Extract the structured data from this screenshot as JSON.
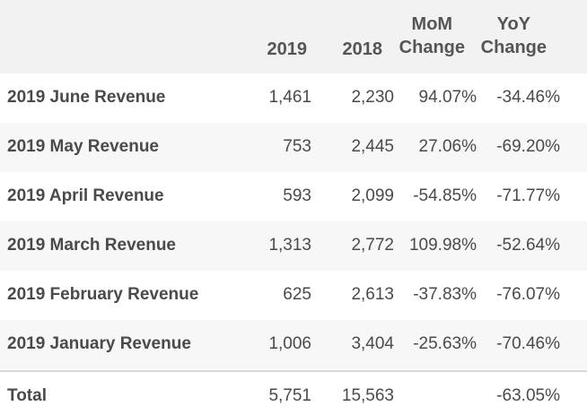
{
  "table": {
    "headers": {
      "c2019": "2019",
      "c2018": "2018",
      "mom_line1": "MoM",
      "mom_line2": "Change",
      "yoy_line1": "YoY",
      "yoy_line2": "Change"
    },
    "rows": [
      {
        "label": "2019 June Revenue",
        "v2019": "1,461",
        "v2018": "2,230",
        "mom": "94.07%",
        "yoy": "-34.46%"
      },
      {
        "label": "2019 May Revenue",
        "v2019": "753",
        "v2018": "2,445",
        "mom": "27.06%",
        "yoy": "-69.20%"
      },
      {
        "label": "2019 April Revenue",
        "v2019": "593",
        "v2018": "2,099",
        "mom": "-54.85%",
        "yoy": "-71.77%"
      },
      {
        "label": "2019 March Revenue",
        "v2019": "1,313",
        "v2018": "2,772",
        "mom": "109.98%",
        "yoy": "-52.64%"
      },
      {
        "label": "2019 February Revenue",
        "v2019": "625",
        "v2018": "2,613",
        "mom": "-37.83%",
        "yoy": "-76.07%"
      },
      {
        "label": "2019 January Revenue",
        "v2019": "1,006",
        "v2018": "3,404",
        "mom": "-25.63%",
        "yoy": "-70.46%"
      }
    ],
    "total": {
      "label": "Total",
      "v2019": "5,751",
      "v2018": "15,563",
      "mom": "",
      "yoy": "-63.05%"
    }
  }
}
